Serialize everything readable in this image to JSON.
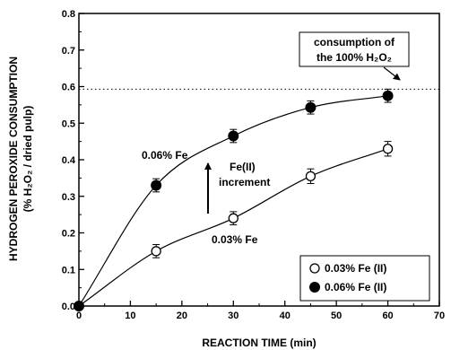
{
  "chart_data": {
    "type": "scatter",
    "xlabel": "REACTION TIME (min)",
    "ylabel_line1": "HYDROGEN PEROXIDE CONSUMPTION",
    "ylabel_line2": "(% H₂O₂ / dried pulp)",
    "xlim": [
      0,
      70
    ],
    "ylim": [
      0.0,
      0.8
    ],
    "x_ticks": [
      0,
      10,
      20,
      30,
      40,
      50,
      60,
      70
    ],
    "y_ticks": [
      0.0,
      0.1,
      0.2,
      0.3,
      0.4,
      0.5,
      0.6,
      0.7,
      0.8
    ],
    "x_tick_labels": [
      "0",
      "10",
      "20",
      "30",
      "40",
      "50",
      "60",
      "70"
    ],
    "y_tick_labels": [
      "0.0",
      "0.1",
      "0.2",
      "0.3",
      "0.4",
      "0.5",
      "0.6",
      "0.7",
      "0.8"
    ],
    "grid": false,
    "legend_position": "bottom-right",
    "series": [
      {
        "name": "0.03% Fe (II)",
        "marker": "open-circle",
        "x": [
          0,
          15,
          30,
          45,
          60
        ],
        "y": [
          0.0,
          0.15,
          0.24,
          0.355,
          0.43
        ],
        "err": [
          0.0,
          0.018,
          0.018,
          0.02,
          0.02
        ]
      },
      {
        "name": "0.06% Fe (II)",
        "marker": "filled-circle",
        "x": [
          0,
          15,
          30,
          45,
          60
        ],
        "y": [
          0.0,
          0.33,
          0.465,
          0.543,
          0.575
        ],
        "err": [
          0.0,
          0.018,
          0.018,
          0.018,
          0.018
        ]
      }
    ],
    "reference_line": {
      "y": 0.593,
      "style": "dotted"
    },
    "annotations": {
      "fe06": "0.06% Fe",
      "fe03": "0.03% Fe",
      "increment_line1": "Fe(II)",
      "increment_line2": "increment",
      "consumption_line1": "consumption of",
      "consumption_line2": "the 100% H₂O₂"
    }
  }
}
